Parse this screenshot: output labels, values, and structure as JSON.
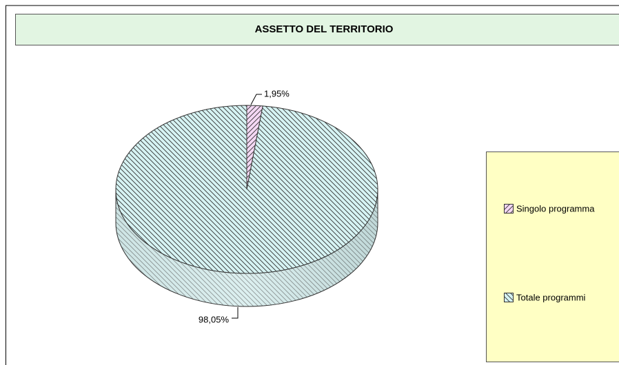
{
  "chart_data": {
    "type": "pie",
    "title": "ASSETTO DEL TERRITORIO",
    "categories": [
      "Singolo programma",
      "Totale programmi"
    ],
    "values": [
      1.95,
      98.05
    ],
    "value_labels": [
      "1,95%",
      "98,05%"
    ],
    "colors": [
      "#f4d8f4",
      "#d6f3f3"
    ],
    "hatch": [
      "/",
      "\\"
    ],
    "legend": "right"
  }
}
